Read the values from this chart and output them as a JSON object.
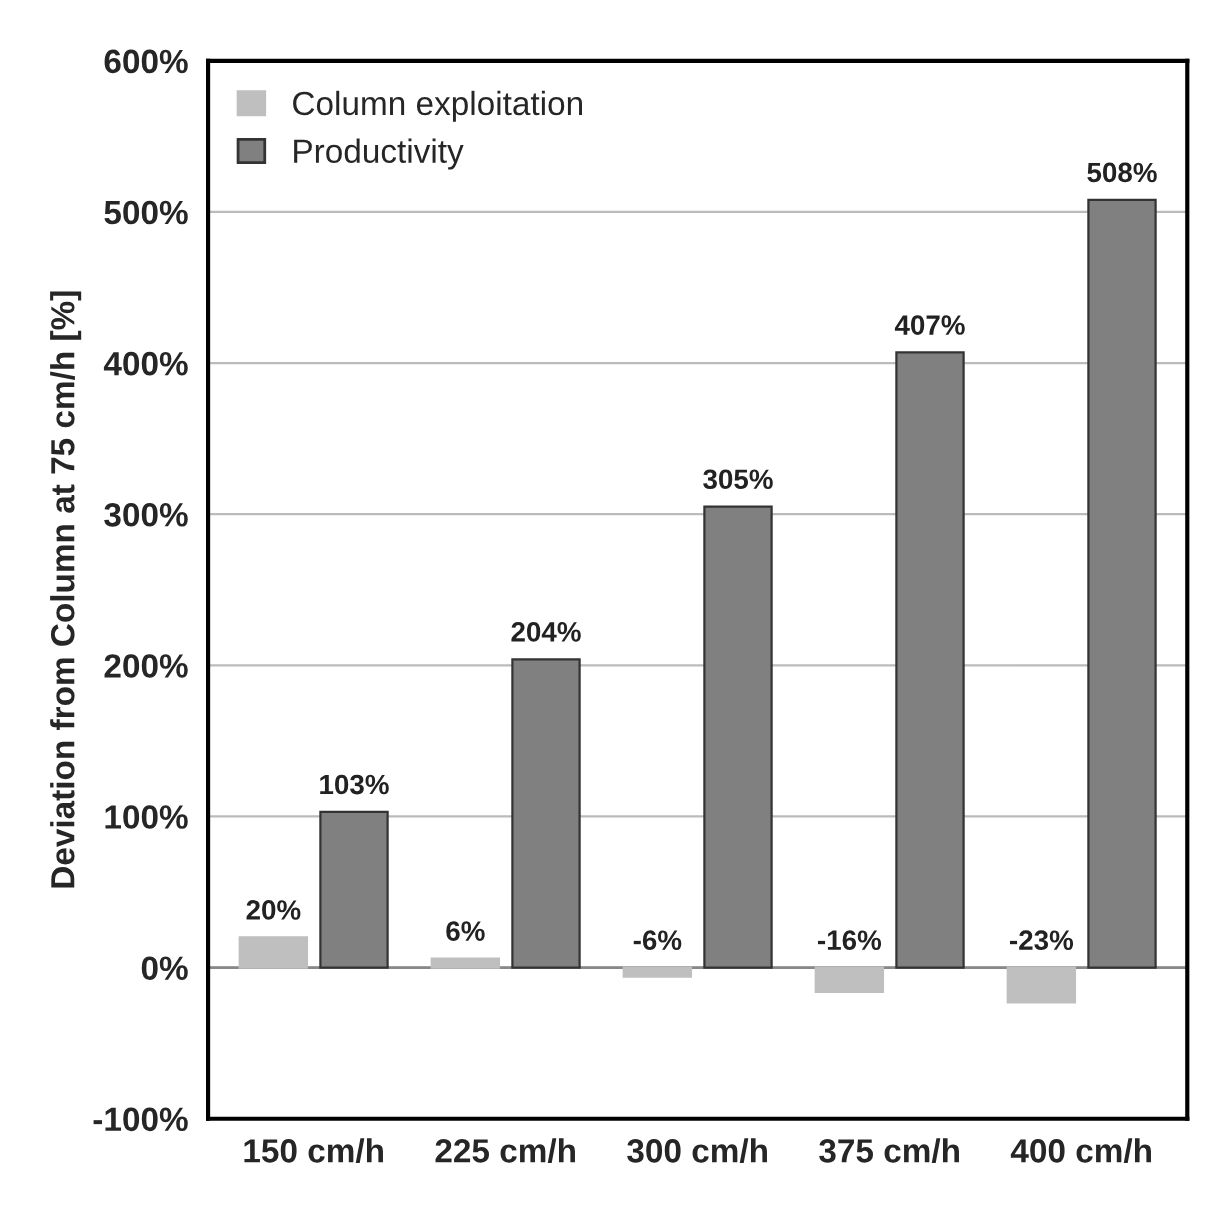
{
  "chart_data": {
    "type": "bar",
    "ylabel": "Deviation from Column at 75 cm/h [%]",
    "categories": [
      "150 cm/h",
      "225 cm/h",
      "300 cm/h",
      "375 cm/h",
      "400 cm/h"
    ],
    "series": [
      {
        "name": "Column exploitation",
        "color": "#bfbfbf",
        "values": [
          20,
          6,
          -6,
          -16,
          -23
        ],
        "value_labels": [
          "20%",
          "6%",
          "-6%",
          "-16%",
          "-23%"
        ]
      },
      {
        "name": "Productivity",
        "color": "#808080",
        "values": [
          103,
          204,
          305,
          407,
          508
        ],
        "value_labels": [
          "103%",
          "204%",
          "305%",
          "407%",
          "508%"
        ]
      }
    ],
    "ylim": [
      -100,
      600
    ],
    "yticks": [
      {
        "value": -100,
        "label": "-100%"
      },
      {
        "value": 0,
        "label": "0%"
      },
      {
        "value": 100,
        "label": "100%"
      },
      {
        "value": 200,
        "label": "200%"
      },
      {
        "value": 300,
        "label": "300%"
      },
      {
        "value": 400,
        "label": "400%"
      },
      {
        "value": 500,
        "label": "500%"
      },
      {
        "value": 600,
        "label": "600%"
      }
    ],
    "grid": "y",
    "legend": "top left"
  }
}
